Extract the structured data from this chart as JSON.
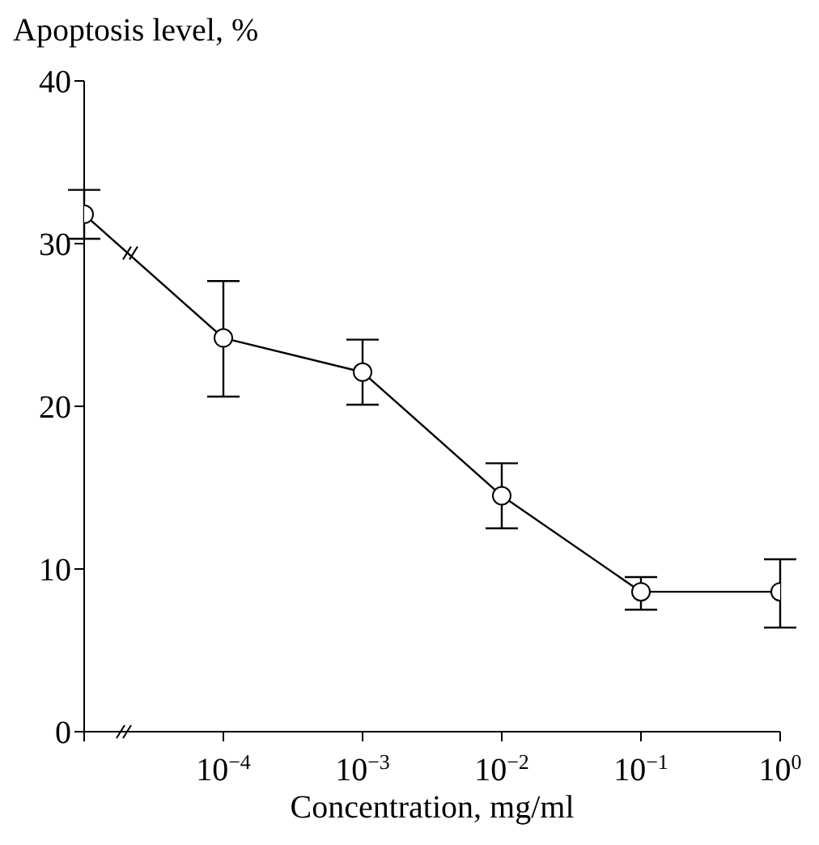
{
  "chart_data": {
    "type": "line",
    "ylabel": "Apoptosis level, %",
    "xlabel": "Concentration, mg/ml",
    "categories": [
      null,
      "10$^{−4}$",
      "10$^{−3}$",
      "10$^{−2}$",
      "10$^{−1}$",
      "10$^{0}$"
    ],
    "series": [
      {
        "color": "#000000",
        "values": [
          31.8,
          24.2,
          22.1,
          14.5,
          8.6,
          8.6
        ],
        "errors": [
          [
            30.3,
            33.3
          ],
          [
            20.6,
            27.7
          ],
          [
            20.1,
            24.1
          ],
          [
            12.5,
            16.5
          ],
          [
            7.5,
            9.5
          ],
          [
            6.4,
            10.6
          ]
        ]
      }
    ],
    "ylim": [
      0,
      40
    ],
    "yticks": [
      0,
      10,
      20,
      30,
      40
    ],
    "marker": "circle",
    "line_style": "solid"
  }
}
